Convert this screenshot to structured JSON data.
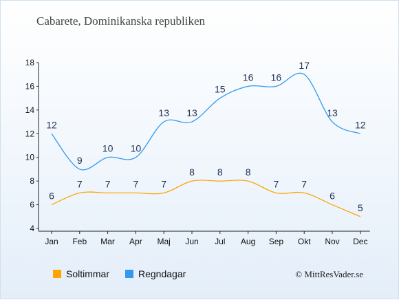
{
  "title": "Cabarete, Dominikanska republiken",
  "copyright": "© MittResVader.se",
  "chart_data": {
    "type": "line",
    "categories": [
      "Jan",
      "Feb",
      "Mar",
      "Apr",
      "Maj",
      "Jun",
      "Jul",
      "Aug",
      "Sep",
      "Okt",
      "Nov",
      "Dec"
    ],
    "ylim": [
      4,
      18
    ],
    "yticks": [
      4,
      6,
      8,
      10,
      12,
      14,
      16,
      18
    ],
    "grid": false,
    "legend_position": "bottom-left",
    "series": [
      {
        "name": "Soltimmar",
        "color": "#ffa500",
        "values": [
          6,
          7,
          7,
          7,
          7,
          8,
          8,
          8,
          7,
          7,
          6,
          5
        ]
      },
      {
        "name": "Regndagar",
        "color": "#3399ee",
        "values": [
          12,
          9,
          10,
          10,
          13,
          13,
          15,
          16,
          16,
          17,
          13,
          12
        ]
      }
    ]
  }
}
